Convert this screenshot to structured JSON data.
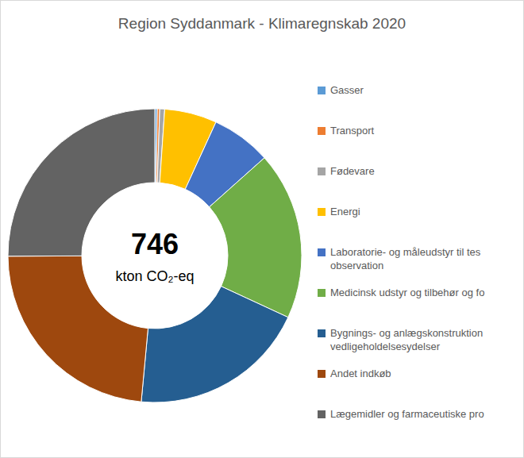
{
  "chart_data": {
    "type": "pie",
    "title": "Region Syddanmark - Klimaregnskab 2020",
    "total": 746,
    "total_unit": "kton CO₂-eq",
    "categories": [
      "Gasser",
      "Transport",
      "Fødevare",
      "Energi",
      "Laboratorie- og måleudstyr til tes\nobservation",
      "Medicinsk udstyr og tilbehør og fo",
      "Bygnings- og anlægskonstruktion\nvedligeholdelsesydelser",
      "Andet indkøb",
      "Lægemidler og farmaceutiske pro"
    ],
    "values": [
      2,
      2,
      4,
      43,
      49,
      138,
      146,
      175,
      187
    ],
    "colors": [
      "#5b9bd5",
      "#ed7d31",
      "#a5a5a5",
      "#ffc000",
      "#4472c4",
      "#70ad47",
      "#255e91",
      "#9e480e",
      "#636363"
    ],
    "legend": "right",
    "data_labels": false
  }
}
